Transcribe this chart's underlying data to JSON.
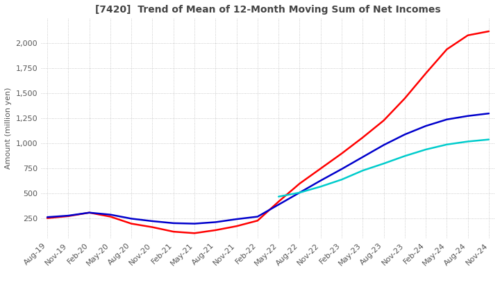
{
  "title": "[7420]  Trend of Mean of 12-Month Moving Sum of Net Incomes",
  "ylabel": "Amount (million yen)",
  "background_color": "#ffffff",
  "grid_color": "#aaaaaa",
  "ylim": [
    50,
    2250
  ],
  "yticks": [
    250,
    500,
    750,
    1000,
    1250,
    1500,
    1750,
    2000
  ],
  "x_labels": [
    "Aug-19",
    "Nov-19",
    "Feb-20",
    "May-20",
    "Aug-20",
    "Nov-20",
    "Feb-21",
    "May-21",
    "Aug-21",
    "Nov-21",
    "Feb-22",
    "May-22",
    "Aug-22",
    "Nov-22",
    "Feb-23",
    "May-23",
    "Aug-23",
    "Nov-23",
    "Feb-24",
    "May-24",
    "Aug-24",
    "Nov-24"
  ],
  "series": {
    "3 Years": {
      "color": "#ff0000",
      "data": [
        255,
        275,
        310,
        270,
        200,
        165,
        120,
        105,
        135,
        175,
        230,
        420,
        600,
        750,
        900,
        1060,
        1230,
        1450,
        1700,
        1940,
        2080,
        2120
      ]
    },
    "5 Years": {
      "color": "#0000cc",
      "data": [
        265,
        280,
        310,
        290,
        250,
        225,
        205,
        200,
        215,
        245,
        270,
        390,
        510,
        630,
        745,
        865,
        985,
        1090,
        1175,
        1240,
        1275,
        1300
      ]
    },
    "7 Years": {
      "color": "#00cccc",
      "data": [
        null,
        null,
        null,
        null,
        null,
        null,
        null,
        null,
        null,
        null,
        null,
        470,
        510,
        570,
        640,
        730,
        800,
        875,
        940,
        990,
        1020,
        1040
      ]
    },
    "10 Years": {
      "color": "#008000",
      "data": [
        null,
        null,
        null,
        null,
        null,
        null,
        null,
        null,
        null,
        null,
        null,
        null,
        null,
        null,
        null,
        null,
        null,
        null,
        null,
        null,
        null,
        null
      ]
    }
  },
  "legend_ncol": 4,
  "title_fontsize": 10,
  "label_fontsize": 8,
  "tick_fontsize": 8
}
